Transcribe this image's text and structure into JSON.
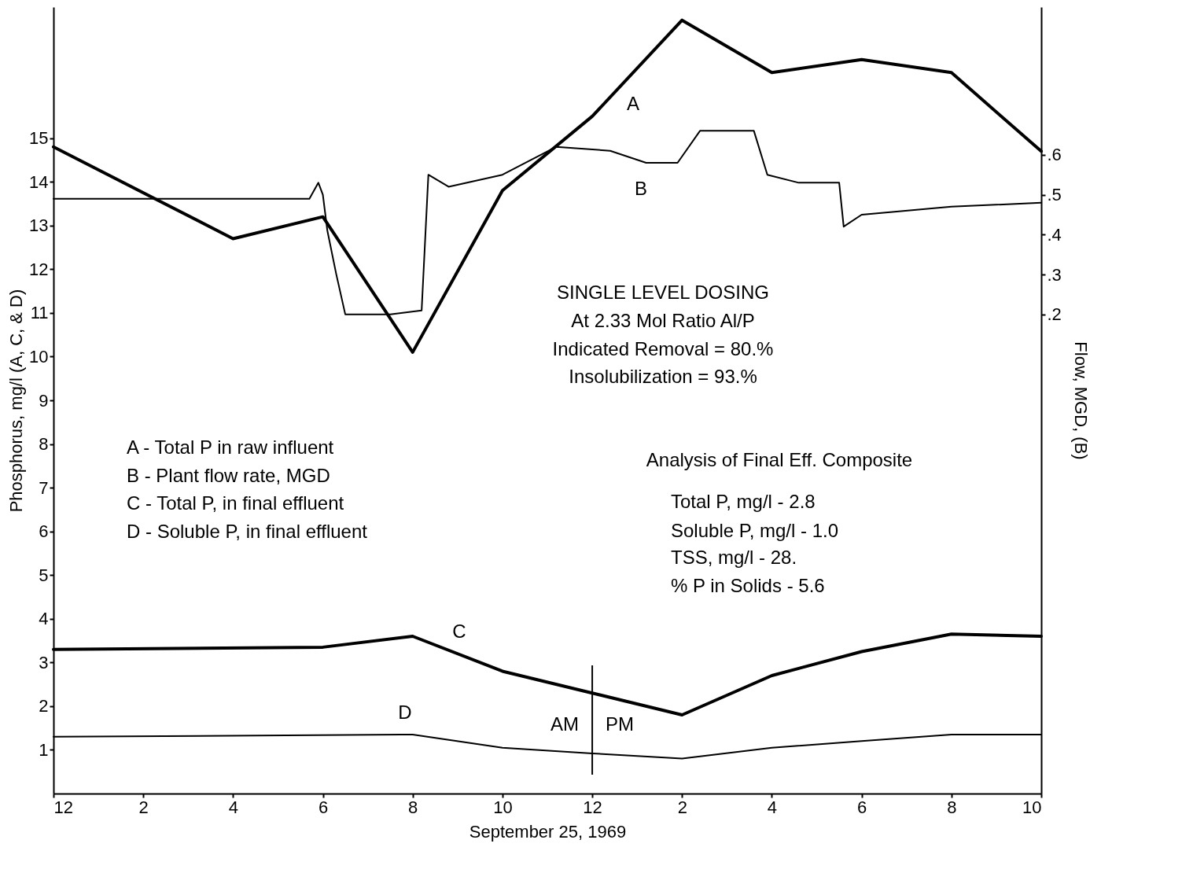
{
  "chart_data": {
    "type": "line",
    "xlabel": "September 25, 1969",
    "ylabel": "Phosphorus, mg/l (A, C, & D)",
    "y2label": "Flow, MGD, (B)",
    "xlim": [
      "1969-09-25T00:00",
      "1969-09-25T22:00"
    ],
    "xticks": [
      {
        "value": "1969-09-25T00:00",
        "label": "12"
      },
      {
        "value": "1969-09-25T02:00",
        "label": "2"
      },
      {
        "value": "1969-09-25T04:00",
        "label": "4"
      },
      {
        "value": "1969-09-25T06:00",
        "label": "6"
      },
      {
        "value": "1969-09-25T08:00",
        "label": "8"
      },
      {
        "value": "1969-09-25T10:00",
        "label": "10"
      },
      {
        "value": "1969-09-25T12:00",
        "label": "12"
      },
      {
        "value": "1969-09-25T14:00",
        "label": "2"
      },
      {
        "value": "1969-09-25T16:00",
        "label": "4"
      },
      {
        "value": "1969-09-25T18:00",
        "label": "6"
      },
      {
        "value": "1969-09-25T20:00",
        "label": "8"
      },
      {
        "value": "1969-09-25T22:00",
        "label": "10"
      }
    ],
    "ylim": [
      0,
      18
    ],
    "yticks": [
      1,
      2,
      3,
      4,
      5,
      6,
      7,
      8,
      9,
      10,
      11,
      12,
      13,
      14,
      15
    ],
    "y2lim": [
      -1.0,
      0.97
    ],
    "y2ticks": [
      {
        "value": 0.2,
        "label": ".2"
      },
      {
        "value": 0.3,
        "label": ".3"
      },
      {
        "value": 0.4,
        "label": ".4"
      },
      {
        "value": 0.5,
        "label": ".5"
      },
      {
        "value": 0.6,
        "label": ".6"
      }
    ],
    "grid": false,
    "marker": "none",
    "line_style": "solid",
    "series": [
      {
        "name": "A",
        "color": "#000000",
        "x": [
          "1969-09-25T00:00",
          "1969-09-25T04:00",
          "1969-09-25T06:00",
          "1969-09-25T08:00",
          "1969-09-25T10:00",
          "1969-09-25T12:00",
          "1969-09-25T14:00",
          "1969-09-25T16:00",
          "1969-09-25T18:00",
          "1969-09-25T20:00",
          "1969-09-25T22:00"
        ],
        "values": [
          14.8,
          12.7,
          13.2,
          10.1,
          13.8,
          15.5,
          17.7,
          16.5,
          16.8,
          16.5,
          14.7
        ]
      },
      {
        "name": "B",
        "color": "#000000",
        "axis": "y2",
        "x": [
          "1969-09-25T00:00",
          "1969-09-25T05:42",
          "1969-09-25T05:54",
          "1969-09-25T06:00",
          "1969-09-25T06:06",
          "1969-09-25T06:18",
          "1969-09-25T06:30",
          "1969-09-25T07:30",
          "1969-09-25T08:12",
          "1969-09-25T08:21",
          "1969-09-25T08:48",
          "1969-09-25T10:00",
          "1969-09-25T11:12",
          "1969-09-25T12:24",
          "1969-09-25T13:12",
          "1969-09-25T13:54",
          "1969-09-25T14:24",
          "1969-09-25T15:36",
          "1969-09-25T15:54",
          "1969-09-25T16:36",
          "1969-09-25T17:30",
          "1969-09-25T17:36",
          "1969-09-25T18:00",
          "1969-09-25T20:00",
          "1969-09-25T22:00"
        ],
        "values": [
          0.49,
          0.49,
          0.53,
          0.5,
          0.41,
          0.3,
          0.2,
          0.2,
          0.21,
          0.55,
          0.52,
          0.55,
          0.62,
          0.61,
          0.58,
          0.58,
          0.66,
          0.66,
          0.55,
          0.53,
          0.53,
          0.42,
          0.45,
          0.47,
          0.48
        ]
      },
      {
        "name": "C",
        "color": "#000000",
        "x": [
          "1969-09-25T00:00",
          "1969-09-25T06:00",
          "1969-09-25T08:00",
          "1969-09-25T10:00",
          "1969-09-25T12:00",
          "1969-09-25T14:00",
          "1969-09-25T16:00",
          "1969-09-25T18:00",
          "1969-09-25T20:00",
          "1969-09-25T22:00"
        ],
        "values": [
          3.3,
          3.35,
          3.6,
          2.8,
          2.3,
          1.8,
          2.7,
          3.25,
          3.65,
          3.6
        ]
      },
      {
        "name": "D",
        "color": "#000000",
        "x": [
          "1969-09-25T00:00",
          "1969-09-25T08:00",
          "1969-09-25T10:00",
          "1969-09-25T12:00",
          "1969-09-25T14:00",
          "1969-09-25T16:00",
          "1969-09-25T18:00",
          "1969-09-25T20:00",
          "1969-09-25T22:00"
        ],
        "values": [
          1.3,
          1.35,
          1.05,
          0.92,
          0.8,
          1.05,
          1.2,
          1.35,
          1.35
        ]
      }
    ],
    "ref_lines": [
      {
        "axis": "x",
        "value": "1969-09-25T12:00",
        "color": "#000000"
      }
    ],
    "annotations": [
      "AM",
      "PM",
      "SINGLE LEVEL DOSING",
      "At 2.33 Mol Ratio Al/P",
      "Indicated Removal = 80.%",
      "Insolubilization = 93.%",
      "A - Total P in raw influent",
      "B - Plant flow rate, MGD",
      "C - Total P, in final effluent",
      "D - Soluble P, in final effluent",
      "Analysis of Final Eff. Composite",
      "Total P, mg/l    -  2.8",
      "Soluble P, mg/l -  1.0",
      "TSS, mg/l          - 28.",
      "% P in Solids    -  5.6"
    ]
  }
}
